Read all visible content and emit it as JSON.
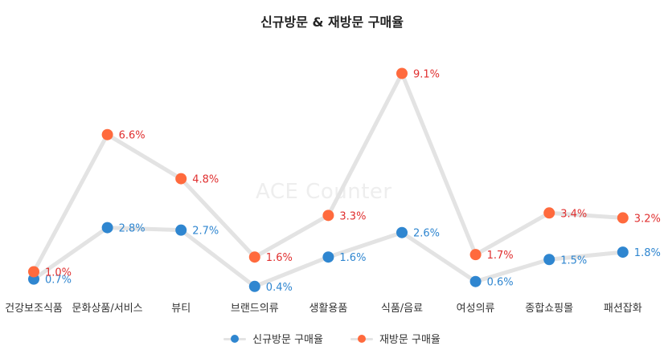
{
  "chart_data": {
    "type": "line",
    "title": "신규방문 & 재방문 구매율",
    "watermark": "ACE Counter",
    "categories": [
      "건강보조식품",
      "문화상품/서비스",
      "뷰티",
      "브랜드의류",
      "생활용품",
      "식품/음료",
      "여성의류",
      "종합쇼핑몰",
      "패션잡화"
    ],
    "series": [
      {
        "name": "신규방문 구매율",
        "color": "#2f86d0",
        "label_color": "#2f86d0",
        "values": [
          0.7,
          2.8,
          2.7,
          0.4,
          1.6,
          2.6,
          0.6,
          1.5,
          1.8
        ],
        "labels": [
          "0.7%",
          "2.8%",
          "2.7%",
          "0.4%",
          "1.6%",
          "2.6%",
          "0.6%",
          "1.5%",
          "1.8%"
        ]
      },
      {
        "name": "재방문 구매율",
        "color": "#ff6a3d",
        "label_color": "#e03030",
        "values": [
          1.0,
          6.6,
          4.8,
          1.6,
          3.3,
          9.1,
          1.7,
          3.4,
          3.2
        ],
        "labels": [
          "1.0%",
          "6.6%",
          "4.8%",
          "1.6%",
          "3.3%",
          "9.1%",
          "1.7%",
          "3.4%",
          "3.2%"
        ]
      }
    ],
    "ylim": [
      0,
      10
    ],
    "grid": false,
    "legend_position": "bottom"
  }
}
